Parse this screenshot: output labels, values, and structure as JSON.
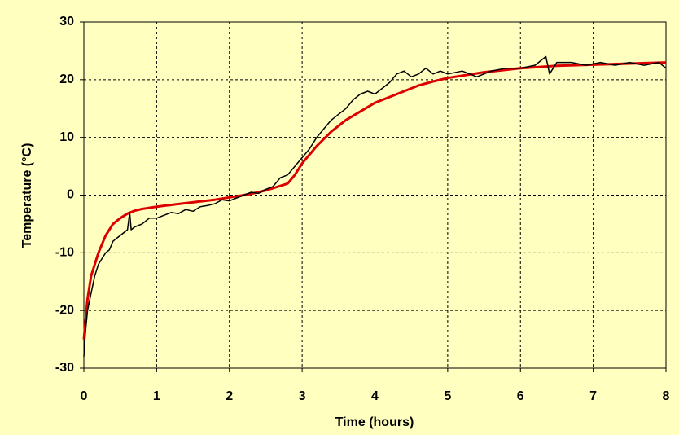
{
  "chart_data": {
    "type": "line",
    "x_label": "Time (hours)",
    "y_label": "Temperature (°C)",
    "xlim": [
      0,
      8
    ],
    "ylim": [
      -30,
      30
    ],
    "xticks": [
      0,
      1,
      2,
      3,
      4,
      5,
      6,
      7,
      8
    ],
    "yticks": [
      -30,
      -20,
      -10,
      0,
      10,
      20,
      30
    ],
    "grid": true,
    "series": [
      {
        "color": "#000000",
        "x": [
          0,
          0.02,
          0.05,
          0.1,
          0.15,
          0.2,
          0.25,
          0.3,
          0.35,
          0.4,
          0.45,
          0.5,
          0.55,
          0.6,
          0.63,
          0.65,
          0.7,
          0.8,
          0.9,
          1.0,
          1.1,
          1.2,
          1.3,
          1.4,
          1.5,
          1.6,
          1.7,
          1.8,
          1.9,
          2.0,
          2.1,
          2.2,
          2.3,
          2.4,
          2.5,
          2.6,
          2.7,
          2.8,
          2.9,
          3.0,
          3.1,
          3.2,
          3.3,
          3.4,
          3.5,
          3.6,
          3.7,
          3.8,
          3.9,
          4.0,
          4.1,
          4.2,
          4.3,
          4.4,
          4.5,
          4.6,
          4.7,
          4.8,
          4.9,
          5.0,
          5.2,
          5.4,
          5.6,
          5.8,
          6.0,
          6.2,
          6.35,
          6.4,
          6.5,
          6.7,
          6.9,
          7.1,
          7.3,
          7.5,
          7.7,
          7.9,
          8.0
        ],
        "values": [
          -28,
          -24,
          -20,
          -17,
          -14,
          -12,
          -11,
          -10,
          -9.5,
          -8,
          -7.5,
          -7,
          -6.5,
          -6,
          -3,
          -6,
          -5.5,
          -5,
          -4,
          -4,
          -3.5,
          -3,
          -3.2,
          -2.5,
          -2.8,
          -2,
          -1.8,
          -1.5,
          -0.8,
          -1,
          -0.5,
          0,
          0.5,
          0.3,
          1,
          1.5,
          3,
          3.5,
          5,
          6.5,
          8,
          10,
          11.5,
          13,
          14,
          15,
          16.5,
          17.5,
          18,
          17.5,
          18.5,
          19.5,
          21,
          21.5,
          20.5,
          21,
          22,
          21,
          21.5,
          21,
          21.5,
          20.5,
          21.5,
          22,
          22,
          22.5,
          24,
          21,
          23,
          23,
          22.5,
          23,
          22.5,
          23,
          22.5,
          23,
          22
        ]
      },
      {
        "color": "#dd0000",
        "x": [
          0,
          0.05,
          0.1,
          0.2,
          0.3,
          0.4,
          0.5,
          0.6,
          0.7,
          0.8,
          1.0,
          1.2,
          1.4,
          1.6,
          1.8,
          2.0,
          2.2,
          2.4,
          2.6,
          2.8,
          2.9,
          3.0,
          3.2,
          3.4,
          3.6,
          3.8,
          4.0,
          4.2,
          4.4,
          4.6,
          4.8,
          5.0,
          5.5,
          6.0,
          6.5,
          7.0,
          7.5,
          8.0
        ],
        "values": [
          -25,
          -18,
          -14,
          -10,
          -7,
          -5,
          -4,
          -3.2,
          -2.7,
          -2.4,
          -2,
          -1.7,
          -1.4,
          -1.1,
          -0.8,
          -0.4,
          0,
          0.5,
          1.2,
          2,
          3.5,
          5.5,
          8.5,
          11,
          13,
          14.5,
          16,
          17,
          18,
          19,
          19.7,
          20.3,
          21.3,
          22,
          22.4,
          22.6,
          22.8,
          23
        ]
      }
    ]
  }
}
